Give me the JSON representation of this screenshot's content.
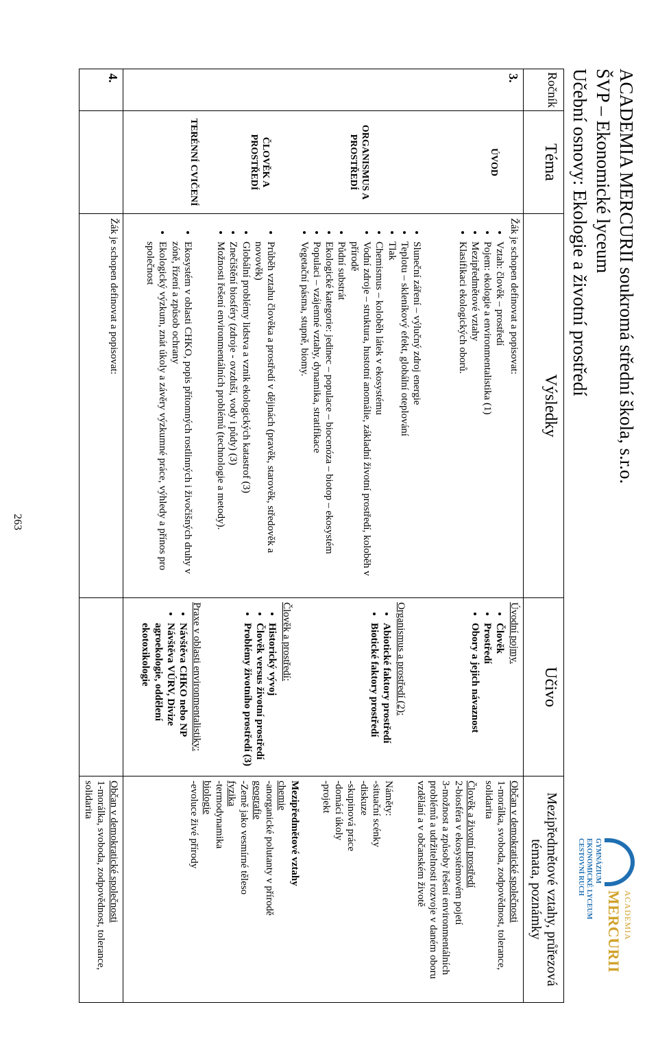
{
  "page_number": "263",
  "colors": {
    "logo_blue": "#1f6fb2",
    "logo_gold": "#d1a12a",
    "text": "#000000",
    "border": "#000000",
    "background": "#ffffff"
  },
  "header": {
    "school": "ACADEMIA MERCURII  soukromá střední škola, s.r.o.",
    "svp": "ŠVP – Ekonomické lyceum",
    "subject": "Učební osnovy: Ekologie a životní prostředí"
  },
  "logo": {
    "line1": "ACADEMIA",
    "line2": "MERCURII",
    "sub1": "GYMNÁZIUM",
    "sub2": "EKONOMICKÉ LYCEUM",
    "sub3": "CESTOVNÍ RUCH"
  },
  "columns": {
    "rocnik": "Ročník",
    "tema": "Téma",
    "vysledky": "Výsledky",
    "ucivo": "Učivo",
    "notes": "Mezipředmětové vztahy, průřezová témata, poznámky"
  },
  "row3": {
    "rocnik": "3.",
    "tema": {
      "uvod": "ÚVOD",
      "org": "ORGANISMUS A PROSTŘEDÍ",
      "clovek": "ČLOVĚK A PROSTŘEDÍ",
      "teren": "TERÉNNÍ CVIČENÍ"
    },
    "vysledky": {
      "lead": "Žák je schopen definovat a popisovat:",
      "uvod_items": [
        "Vztah: člověk – prostředí",
        "Pojem: ekologie a environmentalistika (1)",
        "Mezipředmětové vztahy",
        "Klasifikaci ekologických oborů."
      ],
      "org_items": [
        "Sluneční záření – výlučný zdroj energie",
        "Teplotu – skleníkový efekt, globální oteplování",
        "Tlak",
        "Chemismus – koloběh látek v ekosystému",
        "Vodní zdroje – struktura, hustotní anomálie, základní  životní prostředí, koloběh v přírodě",
        "Půdní substrát",
        "Ekologické kategorie: jedinec – populace – biocenóza – biotop – ekosystém",
        "Populaci – vzájemné vztahy, dynamika, stratifikace",
        "Vegetační pásma, stupně, biomy."
      ],
      "clovek_items": [
        "Průběh vztahu člověka a prostředí v dějinách (pravěk, starověk, středověk a novověk)",
        "Globální problémy lidstva a vznik ekologických katastrof (3)",
        "Znečištění biosféry (zdroje - ovzduší, vody i půdy) (3)",
        "Možnosti řešení environmentálních problémů (technologie a metody)."
      ],
      "teren_items": [
        "Ekosystém v oblasti CHKO, popis přítomných rostlinných i živočišných druhy v zóně, řízení a způsob ochrany",
        "Ekologický výzkum, znát úkoly a závěry výzkumné práce, výhledy a přínos pro společnost"
      ]
    },
    "ucivo": {
      "h_uvod": "Úvodní pojmy.",
      "uvod_items": [
        "Člověk",
        "Prostředí",
        "Obory a jejich návaznost"
      ],
      "h_org": "Organismus a prostředí (2):",
      "org_items": [
        "Abiotické faktory prostředí",
        "Biotické faktory prostředí"
      ],
      "h_clovek": "Člověk a prostředí:",
      "clovek_items": [
        "Historický vývoj",
        "Člověk versus životní prostředí",
        "Problémy životního prostředí (3)"
      ],
      "h_praxe": "Praxe v oblasti environmentalistiky:",
      "praxe_items": [
        "Návštěva CHKO nebo NP",
        "Návštěva VÚRV, Divize agroekologie, oddělení ekotoxikologie"
      ]
    },
    "notes": {
      "obcan_u": "Občan v demokratické společnosti",
      "obcan_1": "1-morálka, svoboda, zodpovědnost, tolerance, solidarita",
      "clovek_u": "Člověk a životní prostředí",
      "clovek_2": "2-biosféra v ekosystémovém pojetí",
      "clovek_3": "3-možnost a způsoby řešení environmentálních problémů a udržitelnosti rozvoje v daném oboru vzdělání a v občanském životě",
      "namety_h": "Náměty:",
      "namety": [
        "-situační scénky",
        "-diskuze",
        "-skupinová práce",
        "-domácí úkoly",
        "-projekt"
      ],
      "mez_h": "Mezipředmětové vztahy",
      "chemie_u": "chemie",
      "chemie": "-anorganické polutanty v přírodě",
      "geo_u": "geografie",
      "geo": "-Země jako vesmírné těleso",
      "fyz_u": "fyzika",
      "fyz": "-termodynamika",
      "bio_u": "biologie",
      "bio": "-evoluce živé přírody"
    }
  },
  "row4": {
    "rocnik": "4.",
    "vysledky_lead": "Žák je schopen definovat a popisovat:",
    "notes_u": "Občan v demokratické společnosti",
    "notes_1": "1-morálka, svoboda, zodpovědnost, tolerance, solidarita"
  }
}
